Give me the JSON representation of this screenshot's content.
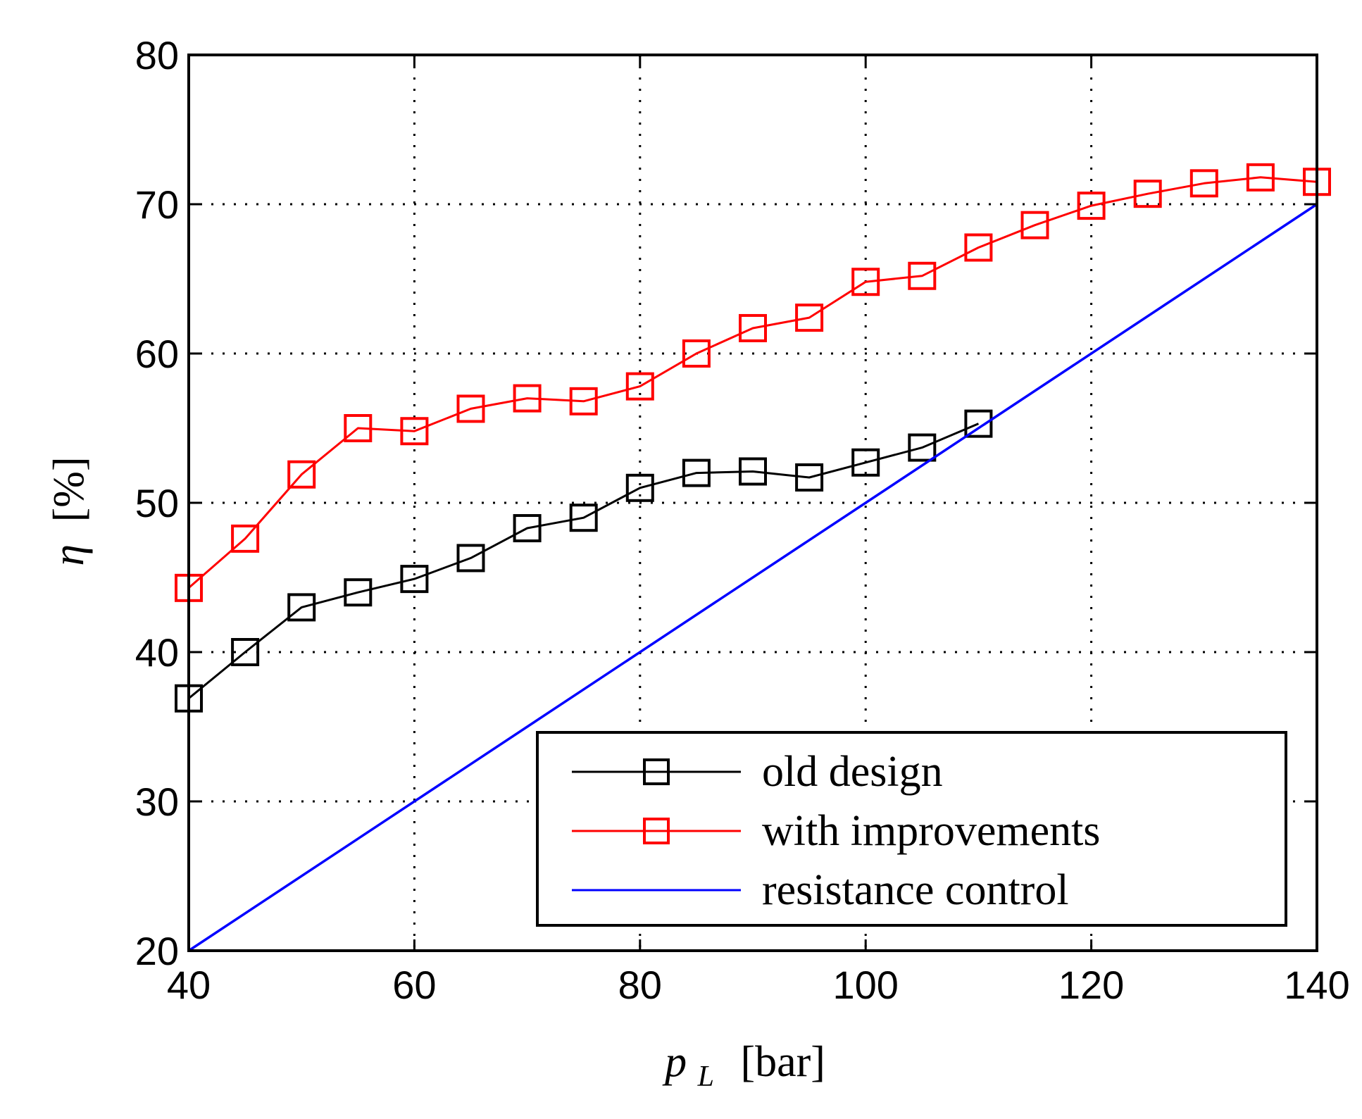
{
  "chart_data": {
    "type": "line",
    "title": "",
    "xlabel": {
      "symbol": "p",
      "subscript": "L",
      "unit": "[bar]"
    },
    "ylabel": {
      "symbol": "η",
      "unit": "[%]"
    },
    "xlim": [
      40,
      140
    ],
    "ylim": [
      20,
      80
    ],
    "xticks": [
      40,
      60,
      80,
      100,
      120,
      140
    ],
    "yticks": [
      20,
      30,
      40,
      50,
      60,
      70,
      80
    ],
    "xtick_labels": [
      "40",
      "60",
      "80",
      "100",
      "120",
      "140"
    ],
    "ytick_labels": [
      "20",
      "30",
      "40",
      "50",
      "60",
      "70",
      "80"
    ],
    "grid": true,
    "legend_position": "bottom-right",
    "series": [
      {
        "name": "old design",
        "color": "#000000",
        "marker": "square",
        "x": [
          40,
          45,
          50,
          55,
          60,
          65,
          70,
          75,
          80,
          85,
          90,
          95,
          100,
          105,
          110
        ],
        "y": [
          36.9,
          40.0,
          43.0,
          44.0,
          44.9,
          46.3,
          48.3,
          49.0,
          51.0,
          52.0,
          52.1,
          51.7,
          52.7,
          53.7,
          55.3
        ]
      },
      {
        "name": "with improvements",
        "color": "#ff0000",
        "marker": "square",
        "x": [
          40,
          45,
          50,
          55,
          60,
          65,
          70,
          75,
          80,
          85,
          90,
          95,
          100,
          105,
          110,
          115,
          120,
          125,
          130,
          135,
          140
        ],
        "y": [
          44.3,
          47.6,
          51.9,
          55.0,
          54.8,
          56.3,
          57.0,
          56.8,
          57.8,
          60.0,
          61.7,
          62.4,
          64.8,
          65.2,
          67.1,
          68.6,
          69.9,
          70.7,
          71.4,
          71.8,
          71.5
        ]
      },
      {
        "name": "resistance control",
        "color": "#0000ff",
        "marker": "none",
        "x": [
          40,
          140
        ],
        "y": [
          20,
          70
        ]
      }
    ]
  }
}
